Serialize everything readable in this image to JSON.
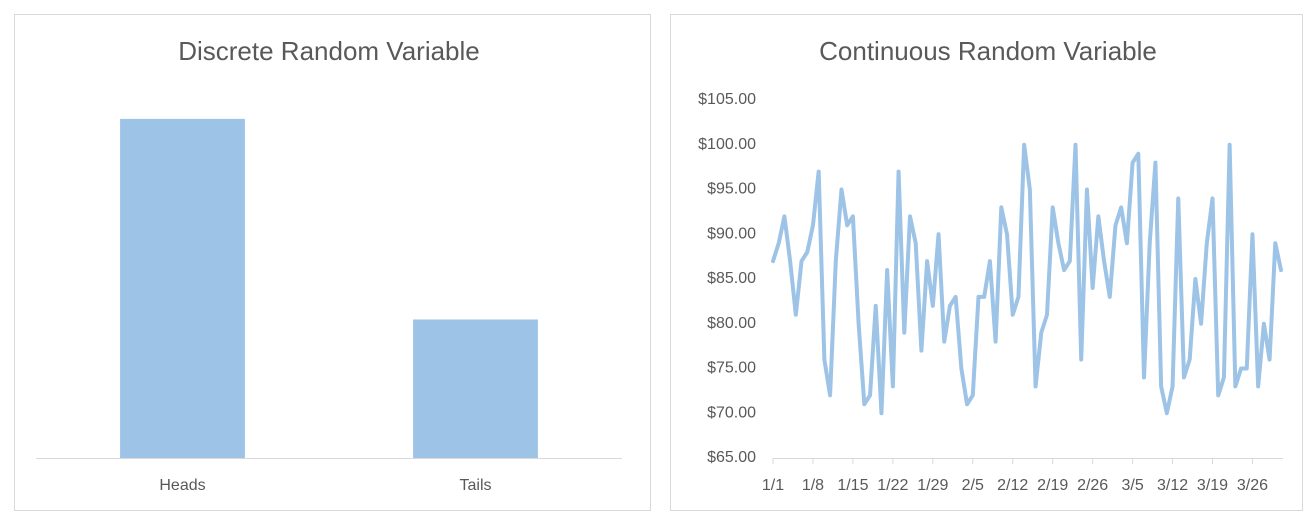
{
  "chart_data": [
    {
      "type": "bar",
      "title": "Discrete Random Variable",
      "categories": [
        "Heads",
        "Tails"
      ],
      "values": [
        71,
        29
      ],
      "color": "#9dc3e6",
      "ylim": [
        0,
        76
      ]
    },
    {
      "type": "line",
      "title": "Continuous Random Variable",
      "categories": [
        "1/1",
        null,
        null,
        null,
        null,
        null,
        null,
        "1/8",
        null,
        null,
        null,
        null,
        null,
        null,
        "1/15",
        null,
        null,
        null,
        null,
        null,
        null,
        "1/22",
        null,
        null,
        null,
        null,
        null,
        null,
        "1/29",
        null,
        null,
        null,
        null,
        null,
        null,
        "2/5",
        null,
        null,
        null,
        null,
        null,
        null,
        "2/12",
        null,
        null,
        null,
        null,
        null,
        null,
        "2/19",
        null,
        null,
        null,
        null,
        null,
        null,
        "2/26",
        null,
        null,
        null,
        null,
        null,
        null,
        "3/5",
        null,
        null,
        null,
        null,
        null,
        null,
        "3/12",
        null,
        null,
        null,
        null,
        null,
        null,
        "3/19",
        null,
        null,
        null,
        null,
        null,
        null,
        "3/26",
        null,
        null,
        null,
        null,
        null
      ],
      "values": [
        87,
        89,
        92,
        87,
        81,
        87,
        88,
        91,
        97,
        76,
        72,
        87,
        95,
        91,
        92,
        80,
        71,
        72,
        82,
        70,
        86,
        73,
        97,
        79,
        92,
        89,
        77,
        87,
        82,
        90,
        78,
        82,
        83,
        75,
        71,
        72,
        83,
        83,
        87,
        78,
        93,
        90,
        81,
        83,
        100,
        95,
        73,
        79,
        81,
        93,
        89,
        86,
        87,
        100,
        76,
        95,
        84,
        92,
        87,
        83,
        91,
        93,
        89,
        98,
        99,
        74,
        89,
        98,
        73,
        70,
        73,
        94,
        74,
        76,
        85,
        80,
        89,
        94,
        72,
        74,
        100,
        73,
        75,
        75,
        90,
        73,
        80,
        76,
        89,
        86
      ],
      "color": "#9dc3e6",
      "ylim": [
        65,
        105
      ],
      "yticks": [
        {
          "value": 65,
          "label": "$65.00"
        },
        {
          "value": 70,
          "label": "$70.00"
        },
        {
          "value": 75,
          "label": "$75.00"
        },
        {
          "value": 80,
          "label": "$80.00"
        },
        {
          "value": 85,
          "label": "$85.00"
        },
        {
          "value": 90,
          "label": "$90.00"
        },
        {
          "value": 95,
          "label": "$95.00"
        },
        {
          "value": 100,
          "label": "$100.00"
        },
        {
          "value": 105,
          "label": "$105.00"
        }
      ]
    }
  ]
}
